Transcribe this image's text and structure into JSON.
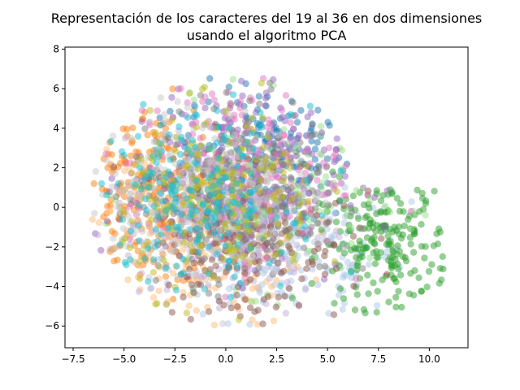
{
  "chart_data": {
    "type": "scatter",
    "title_lines": [
      "Representación de los caracteres del 19 al 36 en dos dimensiones",
      "usando el algoritmo PCA"
    ],
    "xlabel": "",
    "ylabel": "",
    "xlim": [
      -7.9,
      11.9
    ],
    "ylim": [
      -7.1,
      8.1
    ],
    "x_ticks": [
      -7.5,
      -5.0,
      -2.5,
      0.0,
      2.5,
      5.0,
      7.5,
      10.0
    ],
    "x_tick_labels": [
      "−7.5",
      "−5.0",
      "−2.5",
      "0.0",
      "2.5",
      "5.0",
      "7.5",
      "10.0"
    ],
    "y_ticks": [
      -6,
      -4,
      -2,
      0,
      2,
      4,
      6,
      8
    ],
    "y_tick_labels": [
      "−6",
      "−4",
      "−2",
      "0",
      "2",
      "4",
      "6",
      "8"
    ],
    "grid": false,
    "legend": false,
    "marker_alpha": 0.5,
    "palette": [
      "#1f77b4",
      "#aec7e8",
      "#ff7f0e",
      "#ffbb78",
      "#2ca02c",
      "#98df8a",
      "#d62728",
      "#ff9896",
      "#9467bd",
      "#c5b0d5",
      "#8c564b",
      "#c49c94",
      "#e377c2",
      "#f7b6d2",
      "#7f7f7f",
      "#c7c7c7",
      "#bcbd22",
      "#dbdb8d",
      "#17becf",
      "#9edae5"
    ],
    "series_summary": [
      {
        "color": "#1f77b4",
        "center": [
          1.8,
          2.6
        ],
        "spread": [
          2.2,
          1.8
        ]
      },
      {
        "color": "#aec7e8",
        "center": [
          3.0,
          -2.5
        ],
        "spread": [
          3.0,
          1.6
        ]
      },
      {
        "color": "#ff7f0e",
        "center": [
          -3.8,
          0.5
        ],
        "spread": [
          2.0,
          2.3
        ]
      },
      {
        "color": "#ffbb78",
        "center": [
          -1.5,
          -1.5
        ],
        "spread": [
          2.6,
          2.3
        ]
      },
      {
        "color": "#2ca02c",
        "center": [
          7.8,
          -1.8
        ],
        "spread": [
          1.6,
          1.6
        ]
      },
      {
        "color": "#98df8a",
        "center": [
          1.5,
          0.5
        ],
        "spread": [
          2.8,
          2.2
        ]
      },
      {
        "color": "#9467bd",
        "center": [
          0.5,
          1.5
        ],
        "spread": [
          2.6,
          2.4
        ]
      },
      {
        "color": "#c5b0d5",
        "center": [
          0.0,
          -1.0
        ],
        "spread": [
          2.6,
          2.3
        ]
      },
      {
        "color": "#8c564b",
        "center": [
          0.8,
          -1.5
        ],
        "spread": [
          2.6,
          2.3
        ]
      },
      {
        "color": "#e377c2",
        "center": [
          0.5,
          2.0
        ],
        "spread": [
          2.6,
          2.2
        ]
      },
      {
        "color": "#7f7f7f",
        "center": [
          0.5,
          0.8
        ],
        "spread": [
          2.6,
          2.3
        ]
      },
      {
        "color": "#c7c7c7",
        "center": [
          -1.8,
          0.8
        ],
        "spread": [
          2.6,
          2.2
        ]
      },
      {
        "color": "#bcbd22",
        "center": [
          -0.2,
          0.3
        ],
        "spread": [
          2.4,
          2.2
        ]
      },
      {
        "color": "#17becf",
        "center": [
          -1.5,
          0.5
        ],
        "spread": [
          2.4,
          2.2
        ]
      }
    ]
  }
}
